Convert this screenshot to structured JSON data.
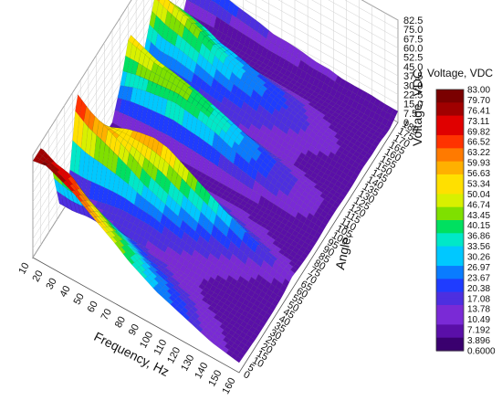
{
  "chart_data": {
    "type": "surface",
    "xlabel": "Frequency, Hz",
    "ylabel": "Angle, °",
    "zlabel": "Voltage, VDC",
    "x_ticks": [
      "10",
      "20",
      "30",
      "40",
      "50",
      "60",
      "70",
      "80",
      "90",
      "100",
      "110",
      "120",
      "130",
      "140",
      "150",
      "160"
    ],
    "y_ticks": [
      "0",
      "5",
      "10",
      "15",
      "20",
      "25",
      "30",
      "35",
      "40",
      "45",
      "50",
      "55",
      "60",
      "65",
      "70",
      "75",
      "80",
      "85",
      "90",
      "95",
      "100",
      "105",
      "110",
      "115",
      "120",
      "125",
      "130",
      "135",
      "140",
      "145",
      "150",
      "155",
      "160",
      "165",
      "170",
      "175",
      "180"
    ],
    "z_ticks": [
      "0",
      "7.5",
      "15.0",
      "22.5",
      "30.0",
      "37.5",
      "45.0",
      "52.5",
      "60.0",
      "67.5",
      "75.0",
      "82.5"
    ],
    "xlim": [
      10,
      160
    ],
    "ylim": [
      0,
      180
    ],
    "zlim": [
      0,
      82.5
    ],
    "grid": true,
    "legend": {
      "title": "Voltage, VDC",
      "position": "right",
      "labels": [
        "83.00",
        "79.70",
        "76.41",
        "73.11",
        "69.82",
        "66.52",
        "63.22",
        "59.93",
        "56.63",
        "53.34",
        "50.04",
        "46.74",
        "43.45",
        "40.15",
        "36.86",
        "33.56",
        "30.26",
        "26.97",
        "23.67",
        "20.38",
        "17.08",
        "13.78",
        "10.49",
        "7.192",
        "3.896",
        "0.6000"
      ]
    },
    "colors": [
      "#3a006f",
      "#5a0fa8",
      "#7a2ad6",
      "#4d2fe0",
      "#1f3cff",
      "#0a7cff",
      "#00c8ff",
      "#00e8c8",
      "#00e060",
      "#7fe000",
      "#d8f000",
      "#ffe000",
      "#ffb000",
      "#ff7a00",
      "#ff3300",
      "#e00000",
      "#a00000",
      "#7a0000"
    ],
    "z_grid": [
      [
        78,
        78,
        55,
        10,
        10,
        78,
        40,
        10,
        8,
        8,
        30,
        60,
        10,
        35,
        60,
        40,
        8,
        5,
        25
      ],
      [
        80,
        72,
        50,
        10,
        12,
        68,
        45,
        10,
        8,
        8,
        35,
        55,
        10,
        30,
        55,
        40,
        8,
        5,
        25
      ],
      [
        75,
        70,
        48,
        12,
        15,
        62,
        50,
        12,
        8,
        8,
        38,
        50,
        12,
        30,
        50,
        38,
        8,
        5,
        25
      ],
      [
        70,
        60,
        40,
        12,
        18,
        55,
        55,
        15,
        8,
        8,
        40,
        48,
        12,
        28,
        45,
        35,
        8,
        5,
        22
      ],
      [
        62,
        52,
        35,
        14,
        20,
        48,
        58,
        18,
        8,
        8,
        42,
        45,
        14,
        25,
        40,
        30,
        8,
        5,
        20
      ],
      [
        55,
        45,
        30,
        14,
        20,
        40,
        60,
        20,
        10,
        8,
        40,
        42,
        14,
        22,
        35,
        28,
        8,
        5,
        18
      ],
      [
        48,
        40,
        25,
        14,
        20,
        35,
        58,
        22,
        10,
        8,
        38,
        38,
        14,
        20,
        30,
        25,
        8,
        5,
        15
      ],
      [
        40,
        34,
        20,
        12,
        18,
        30,
        52,
        22,
        10,
        8,
        35,
        34,
        14,
        18,
        28,
        22,
        8,
        5,
        15
      ],
      [
        34,
        28,
        18,
        12,
        16,
        26,
        46,
        20,
        10,
        8,
        30,
        30,
        12,
        16,
        24,
        20,
        8,
        5,
        14
      ],
      [
        28,
        24,
        15,
        10,
        14,
        22,
        40,
        18,
        10,
        8,
        26,
        26,
        12,
        14,
        20,
        18,
        8,
        5,
        12
      ],
      [
        24,
        20,
        12,
        10,
        12,
        18,
        34,
        16,
        10,
        8,
        22,
        22,
        10,
        12,
        18,
        15,
        8,
        5,
        12
      ],
      [
        20,
        16,
        10,
        8,
        10,
        15,
        28,
        14,
        9,
        8,
        18,
        18,
        10,
        10,
        15,
        12,
        8,
        5,
        10
      ],
      [
        16,
        12,
        9,
        8,
        9,
        12,
        22,
        12,
        9,
        8,
        15,
        15,
        9,
        9,
        12,
        10,
        8,
        5,
        10
      ],
      [
        12,
        10,
        8,
        7,
        8,
        10,
        18,
        10,
        8,
        8,
        12,
        12,
        8,
        8,
        10,
        9,
        8,
        5,
        10
      ],
      [
        10,
        8,
        7,
        7,
        7,
        8,
        14,
        9,
        8,
        7,
        10,
        10,
        8,
        8,
        9,
        8,
        7,
        5,
        9
      ],
      [
        8,
        7,
        6,
        6,
        6,
        7,
        10,
        8,
        7,
        7,
        8,
        8,
        7,
        7,
        8,
        7,
        7,
        5,
        9
      ]
    ]
  }
}
